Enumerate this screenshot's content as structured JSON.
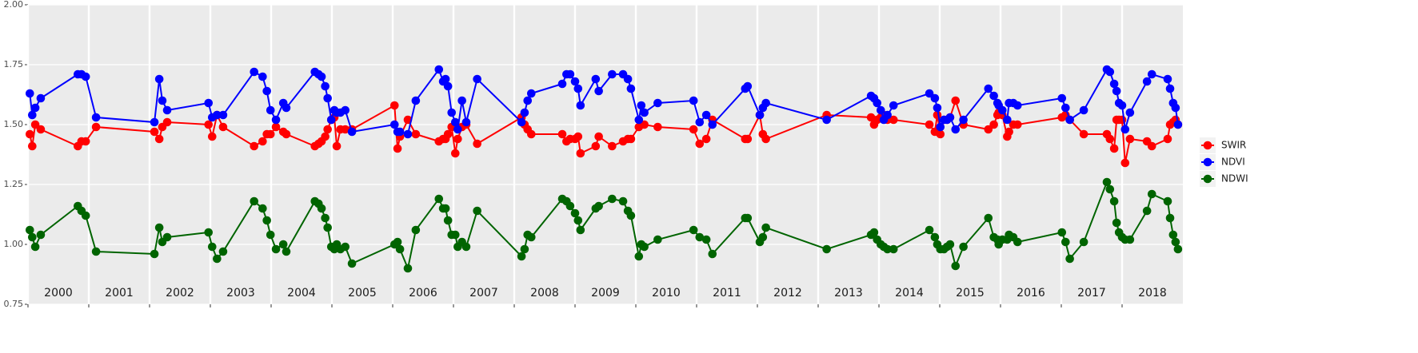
{
  "chart_data": {
    "type": "line",
    "x": [
      2000.03,
      2000.07,
      2000.12,
      2000.21,
      2000.82,
      2000.88,
      2000.95,
      2001.12,
      2002.08,
      2002.16,
      2002.21,
      2002.29,
      2002.97,
      2003.03,
      2003.11,
      2003.21,
      2003.72,
      2003.86,
      2003.93,
      2003.99,
      2004.08,
      2004.2,
      2004.25,
      2004.72,
      2004.78,
      2004.83,
      2004.89,
      2004.93,
      2004.99,
      2005.04,
      2005.08,
      2005.14,
      2005.22,
      2005.33,
      2006.03,
      2006.08,
      2006.12,
      2006.25,
      2006.38,
      2006.76,
      2006.83,
      2006.87,
      2006.91,
      2006.97,
      2007.03,
      2007.07,
      2007.14,
      2007.21,
      2007.39,
      2008.12,
      2008.17,
      2008.22,
      2008.28,
      2008.79,
      2008.86,
      2008.92,
      2009.0,
      2009.05,
      2009.09,
      2009.34,
      2009.39,
      2009.61,
      2009.79,
      2009.87,
      2009.92,
      2010.05,
      2010.09,
      2010.14,
      2010.36,
      2010.95,
      2011.05,
      2011.16,
      2011.26,
      2011.8,
      2011.84,
      2012.04,
      2012.09,
      2012.14,
      2013.14,
      2013.87,
      2013.92,
      2013.97,
      2014.03,
      2014.08,
      2014.14,
      2014.24,
      2014.83,
      2014.92,
      2014.96,
      2015.01,
      2015.07,
      2015.12,
      2015.17,
      2015.26,
      2015.39,
      2015.8,
      2015.89,
      2015.95,
      2015.97,
      2016.03,
      2016.11,
      2016.14,
      2016.21,
      2016.28,
      2017.01,
      2017.07,
      2017.14,
      2017.37,
      2017.75,
      2017.8,
      2017.87,
      2017.91,
      2017.95,
      2018.0,
      2018.05,
      2018.13,
      2018.41,
      2018.49,
      2018.75,
      2018.79,
      2018.84,
      2018.88,
      2018.92
    ],
    "series": [
      {
        "name": "SWIR",
        "color": "#ff0000",
        "values": [
          1.46,
          1.41,
          1.5,
          1.48,
          1.41,
          1.43,
          1.43,
          1.49,
          1.47,
          1.44,
          1.49,
          1.51,
          1.5,
          1.45,
          1.54,
          1.49,
          1.41,
          1.43,
          1.46,
          1.46,
          1.49,
          1.47,
          1.46,
          1.41,
          1.42,
          1.43,
          1.45,
          1.48,
          1.52,
          1.53,
          1.41,
          1.48,
          1.48,
          1.48,
          1.58,
          1.4,
          1.45,
          1.52,
          1.46,
          1.43,
          1.44,
          1.44,
          1.46,
          1.49,
          1.38,
          1.44,
          1.49,
          1.5,
          1.42,
          1.53,
          1.5,
          1.48,
          1.46,
          1.46,
          1.43,
          1.44,
          1.44,
          1.45,
          1.38,
          1.41,
          1.45,
          1.41,
          1.43,
          1.44,
          1.44,
          1.49,
          1.5,
          1.5,
          1.49,
          1.48,
          1.42,
          1.44,
          1.52,
          1.44,
          1.44,
          1.54,
          1.46,
          1.44,
          1.54,
          1.53,
          1.5,
          1.52,
          1.53,
          1.54,
          1.52,
          1.52,
          1.5,
          1.47,
          1.54,
          1.46,
          1.52,
          1.52,
          1.53,
          1.6,
          1.5,
          1.48,
          1.5,
          1.54,
          1.55,
          1.54,
          1.45,
          1.47,
          1.5,
          1.5,
          1.53,
          1.54,
          1.52,
          1.46,
          1.46,
          1.44,
          1.4,
          1.52,
          1.52,
          1.52,
          1.34,
          1.44,
          1.43,
          1.41,
          1.44,
          1.5,
          1.51,
          1.52,
          1.5
        ]
      },
      {
        "name": "NDVI",
        "color": "#0000ff",
        "values": [
          1.63,
          1.54,
          1.57,
          1.61,
          1.71,
          1.71,
          1.7,
          1.53,
          1.51,
          1.69,
          1.6,
          1.56,
          1.59,
          1.53,
          1.54,
          1.54,
          1.72,
          1.7,
          1.64,
          1.56,
          1.52,
          1.59,
          1.57,
          1.72,
          1.71,
          1.7,
          1.66,
          1.61,
          1.52,
          1.56,
          1.55,
          1.55,
          1.56,
          1.47,
          1.5,
          1.47,
          1.47,
          1.46,
          1.6,
          1.73,
          1.68,
          1.69,
          1.66,
          1.55,
          1.51,
          1.48,
          1.6,
          1.51,
          1.69,
          1.51,
          1.55,
          1.6,
          1.63,
          1.67,
          1.71,
          1.71,
          1.68,
          1.65,
          1.58,
          1.69,
          1.64,
          1.71,
          1.71,
          1.69,
          1.65,
          1.52,
          1.58,
          1.55,
          1.59,
          1.6,
          1.51,
          1.54,
          1.5,
          1.65,
          1.66,
          1.54,
          1.57,
          1.59,
          1.52,
          1.62,
          1.61,
          1.59,
          1.56,
          1.52,
          1.54,
          1.58,
          1.63,
          1.61,
          1.57,
          1.49,
          1.52,
          1.52,
          1.53,
          1.48,
          1.52,
          1.65,
          1.62,
          1.59,
          1.58,
          1.56,
          1.52,
          1.59,
          1.59,
          1.58,
          1.61,
          1.57,
          1.52,
          1.56,
          1.73,
          1.72,
          1.67,
          1.64,
          1.59,
          1.58,
          1.48,
          1.55,
          1.68,
          1.71,
          1.69,
          1.65,
          1.59,
          1.57,
          1.5
        ]
      },
      {
        "name": "NDWI",
        "color": "#006400",
        "values": [
          1.06,
          1.03,
          0.99,
          1.04,
          1.16,
          1.14,
          1.12,
          0.97,
          0.96,
          1.07,
          1.01,
          1.03,
          1.05,
          0.99,
          0.94,
          0.97,
          1.18,
          1.15,
          1.1,
          1.04,
          0.98,
          1.0,
          0.97,
          1.18,
          1.17,
          1.15,
          1.11,
          1.07,
          0.99,
          0.98,
          1.0,
          0.98,
          0.99,
          0.92,
          1.0,
          1.01,
          0.98,
          0.9,
          1.06,
          1.19,
          1.15,
          1.15,
          1.1,
          1.04,
          1.04,
          0.99,
          1.01,
          0.99,
          1.14,
          0.95,
          0.98,
          1.04,
          1.03,
          1.19,
          1.18,
          1.16,
          1.13,
          1.1,
          1.06,
          1.15,
          1.16,
          1.19,
          1.18,
          1.14,
          1.12,
          0.95,
          1.0,
          0.99,
          1.02,
          1.06,
          1.03,
          1.02,
          0.96,
          1.11,
          1.11,
          1.01,
          1.03,
          1.07,
          0.98,
          1.04,
          1.05,
          1.02,
          1.0,
          0.99,
          0.98,
          0.98,
          1.06,
          1.03,
          1.0,
          0.98,
          0.98,
          0.99,
          1.0,
          0.91,
          0.99,
          1.11,
          1.03,
          1.02,
          1.0,
          1.02,
          1.02,
          1.04,
          1.03,
          1.01,
          1.05,
          1.01,
          0.94,
          1.01,
          1.26,
          1.23,
          1.18,
          1.09,
          1.05,
          1.03,
          1.02,
          1.02,
          1.14,
          1.21,
          1.18,
          1.11,
          1.04,
          1.01,
          0.98
        ]
      }
    ],
    "xlim": [
      2000,
      2019
    ],
    "xticks": [
      2000,
      2001,
      2002,
      2003,
      2004,
      2005,
      2006,
      2007,
      2008,
      2009,
      2010,
      2011,
      2012,
      2013,
      2014,
      2015,
      2016,
      2017,
      2018
    ],
    "ylim": [
      0.75,
      2.0
    ],
    "yticks": [
      0.75,
      {
        "value": 1,
        "label": "1.00"
      },
      1.25,
      {
        "value": 1.5,
        "label": "1.50"
      },
      1.75,
      {
        "value": 2,
        "label": "2.00"
      }
    ],
    "grid": true,
    "legend": "right"
  }
}
